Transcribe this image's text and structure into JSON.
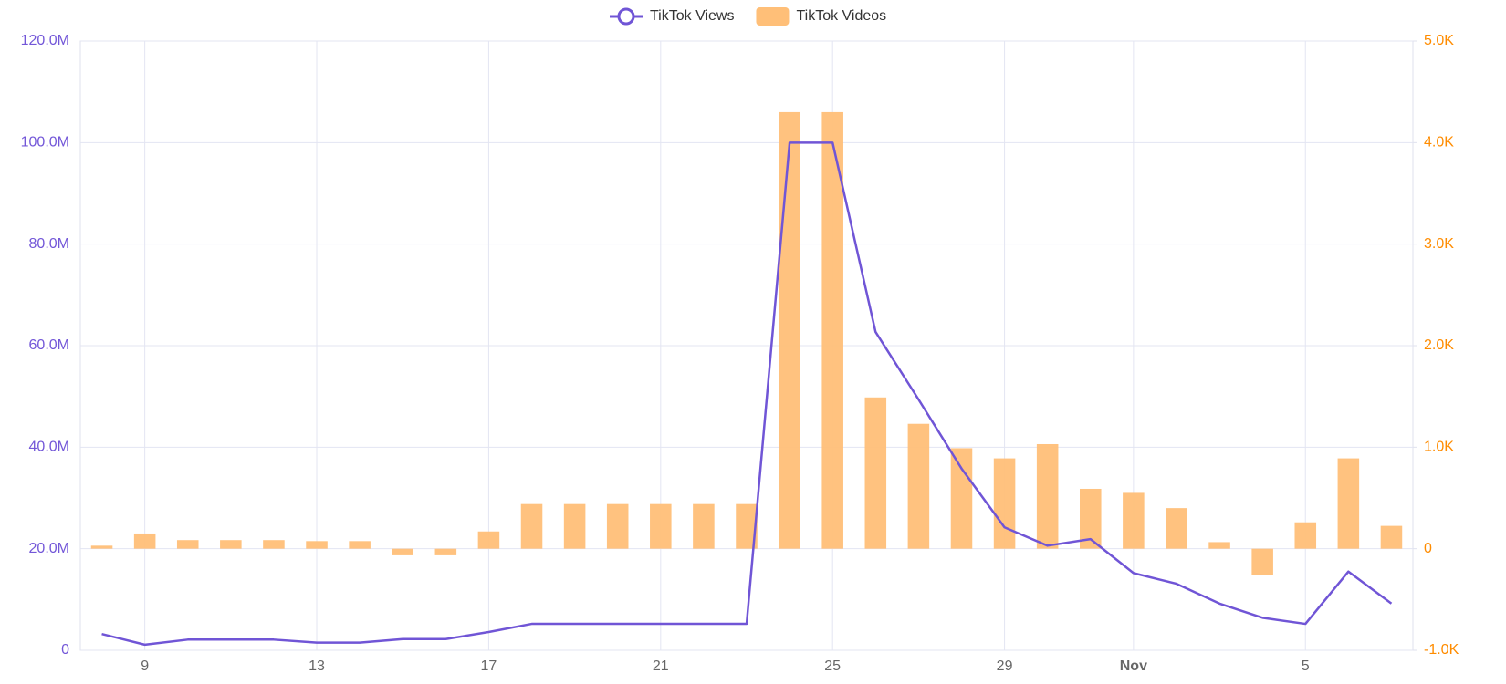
{
  "chart_data": {
    "type": "bar-line",
    "categories": [
      null,
      "9",
      null,
      null,
      null,
      "13",
      null,
      null,
      null,
      "17",
      null,
      null,
      null,
      "21",
      null,
      null,
      null,
      "25",
      null,
      null,
      null,
      "29",
      null,
      null,
      "Nov",
      null,
      null,
      null,
      "5",
      null,
      null
    ],
    "series": [
      {
        "name": "TikTok Views",
        "type": "line",
        "color": "#7055d6",
        "axis": "y",
        "values": [
          3200000,
          1100000,
          2100000,
          2100000,
          2100000,
          1500000,
          1500000,
          2200000,
          2200000,
          3600000,
          5200000,
          5200000,
          5200000,
          5200000,
          5200000,
          5200000,
          100000000,
          100000000,
          62700000,
          49400000,
          35800000,
          24200000,
          20600000,
          21900000,
          15200000,
          13100000,
          9200000,
          6400000,
          5200000,
          15500000,
          9200000
        ]
      },
      {
        "name": "TikTok Videos",
        "type": "bar",
        "color": "#ffbf78",
        "axis": "y2",
        "values": [
          30,
          150,
          85,
          85,
          85,
          75,
          75,
          -65,
          -65,
          170,
          440,
          440,
          440,
          440,
          440,
          440,
          4300,
          4300,
          1490,
          1230,
          990,
          890,
          1030,
          590,
          550,
          400,
          65,
          -260,
          260,
          890,
          225
        ]
      }
    ],
    "ylim": [
      0,
      120000000
    ],
    "yticks": [
      0,
      {
        "value": 20000000,
        "label": "20.0M"
      },
      {
        "value": 40000000,
        "label": "40.0M"
      },
      {
        "value": 60000000,
        "label": "60.0M"
      },
      {
        "value": 80000000,
        "label": "80.0M"
      },
      {
        "value": 100000000,
        "label": "100.0M"
      },
      {
        "value": 120000000,
        "label": "120.0M"
      }
    ],
    "y2lim": [
      -1000,
      5000
    ],
    "y2ticks": [
      {
        "value": -1000,
        "label": "-1.0K"
      },
      0,
      {
        "value": 1000,
        "label": "1.0K"
      },
      {
        "value": 2000,
        "label": "2.0K"
      },
      {
        "value": 3000,
        "label": "3.0K"
      },
      {
        "value": 4000,
        "label": "4.0K"
      },
      {
        "value": 5000,
        "label": "5.0K"
      }
    ],
    "y_color": "#7357d8",
    "y2_color": "#ff8c00",
    "grid": true,
    "legend": "top"
  }
}
